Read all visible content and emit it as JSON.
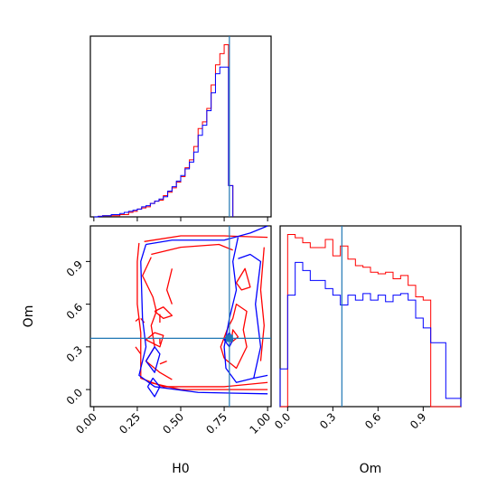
{
  "chart_data": {
    "type": "corner",
    "parameters": [
      "H0",
      "Om"
    ],
    "truths": {
      "H0": 0.78,
      "Om": 0.36
    },
    "truth_color": "#1f77b4",
    "series_colors": {
      "red": "#ff0000",
      "blue": "#0000ff"
    },
    "xlabels": {
      "H0": "H0",
      "Om": "Om"
    },
    "ylabel_2d": "Om",
    "h0_ticks": [
      "0.00",
      "0.25",
      "0.50",
      "0.75",
      "1.00"
    ],
    "om_ticks": [
      "0.0",
      "0.3",
      "0.6",
      "0.9"
    ],
    "hist_h0": {
      "range": [
        -0.02,
        1.02
      ],
      "bin_width": 0.025,
      "edges_start": 0.0,
      "red": [
        0,
        0.5,
        1,
        1,
        1,
        1,
        2,
        2,
        4,
        5,
        7,
        8,
        9,
        12,
        14,
        15,
        19,
        22,
        26,
        31,
        36,
        44,
        51,
        63,
        79,
        85,
        97,
        118,
        136,
        146,
        154,
        28
      ],
      "blue": [
        0,
        0.5,
        1,
        1,
        2,
        2,
        3,
        4,
        5,
        6,
        7,
        9,
        10,
        12,
        14,
        16,
        18,
        23,
        27,
        32,
        37,
        43,
        49,
        58,
        73,
        82,
        95,
        111,
        128,
        134,
        134,
        28
      ]
    },
    "hist_om": {
      "range": [
        -0.05,
        1.15
      ],
      "bin_width": 0.05,
      "edges_start": -0.05,
      "red": [
        0,
        10.5,
        10.3,
        10,
        9.7,
        9.7,
        10.2,
        9.2,
        9.8,
        9,
        8.6,
        8.5,
        8.2,
        8.1,
        8.2,
        7.8,
        8,
        7.4,
        6.7,
        6.5,
        0,
        0,
        0,
        0
      ],
      "blue": [
        2.3,
        6.8,
        8.8,
        8.3,
        7.7,
        7.7,
        7.2,
        6.8,
        6.2,
        6.8,
        6.5,
        6.9,
        6.5,
        6.8,
        6.4,
        6.8,
        6.9,
        6.5,
        5.4,
        4.8,
        3.9,
        3.9,
        0.5,
        0.5
      ]
    },
    "contours_2d": {
      "red": [
        [
          [
            0.26,
            1.03
          ],
          [
            0.25,
            0.9
          ],
          [
            0.25,
            0.6
          ],
          [
            0.27,
            0.4
          ],
          [
            0.27,
            0.08
          ],
          [
            0.4,
            0.02
          ],
          [
            0.75,
            0.02
          ],
          [
            1.0,
            0.05
          ]
        ],
        [
          [
            0.29,
            1.04
          ],
          [
            0.5,
            1.08
          ],
          [
            0.75,
            1.08
          ],
          [
            1.0,
            1.07
          ]
        ],
        [
          [
            0.32,
            0.05
          ],
          [
            0.5,
            0.0
          ],
          [
            0.75,
            0.0
          ],
          [
            1.0,
            0.0
          ]
        ],
        [
          [
            0.33,
            0.95
          ],
          [
            0.5,
            1.0
          ],
          [
            0.72,
            1.02
          ],
          [
            0.8,
            0.98
          ]
        ],
        [
          [
            0.33,
            0.93
          ],
          [
            0.28,
            0.8
          ],
          [
            0.34,
            0.65
          ],
          [
            0.36,
            0.55
          ],
          [
            0.33,
            0.45
          ],
          [
            0.35,
            0.3
          ],
          [
            0.3,
            0.2
          ],
          [
            0.38,
            0.12
          ],
          [
            0.45,
            0.07
          ]
        ],
        [
          [
            0.45,
            0.85
          ],
          [
            0.42,
            0.7
          ],
          [
            0.45,
            0.6
          ]
        ],
        [
          [
            0.35,
            0.55
          ],
          [
            0.4,
            0.58
          ],
          [
            0.45,
            0.52
          ],
          [
            0.4,
            0.5
          ],
          [
            0.35,
            0.55
          ]
        ],
        [
          [
            0.3,
            0.35
          ],
          [
            0.35,
            0.4
          ],
          [
            0.4,
            0.38
          ],
          [
            0.38,
            0.3
          ],
          [
            0.3,
            0.35
          ]
        ],
        [
          [
            0.75,
            0.22
          ],
          [
            0.73,
            0.3
          ],
          [
            0.77,
            0.43
          ],
          [
            0.8,
            0.5
          ],
          [
            0.82,
            0.6
          ],
          [
            0.88,
            0.55
          ],
          [
            0.86,
            0.42
          ],
          [
            0.88,
            0.3
          ],
          [
            0.82,
            0.15
          ],
          [
            0.75,
            0.22
          ]
        ],
        [
          [
            0.82,
            0.75
          ],
          [
            0.87,
            0.85
          ],
          [
            0.9,
            0.72
          ],
          [
            0.85,
            0.7
          ],
          [
            0.82,
            0.75
          ]
        ],
        [
          [
            0.38,
            0.47
          ],
          [
            0.38,
            0.53
          ]
        ],
        [
          [
            0.27,
            0.5
          ],
          [
            0.29,
            0.47
          ]
        ],
        [
          [
            0.38,
            0.18
          ],
          [
            0.42,
            0.2
          ]
        ],
        [
          [
            0.24,
            0.3
          ],
          [
            0.27,
            0.25
          ]
        ],
        [
          [
            0.79,
            0.33
          ],
          [
            0.8,
            0.42
          ],
          [
            0.83,
            0.37
          ],
          [
            0.79,
            0.33
          ]
        ],
        [
          [
            0.96,
            0.2
          ],
          [
            0.98,
            0.45
          ],
          [
            0.96,
            0.7
          ],
          [
            0.98,
            1.0
          ]
        ],
        [
          [
            0.38,
            0.32
          ],
          [
            0.38,
            0.36
          ]
        ],
        [
          [
            0.24,
            0.48
          ],
          [
            0.26,
            0.5
          ]
        ]
      ],
      "blue": [
        [
          [
            0.3,
            1.02
          ],
          [
            0.27,
            0.9
          ],
          [
            0.28,
            0.5
          ],
          [
            0.3,
            0.3
          ],
          [
            0.26,
            0.1
          ],
          [
            0.35,
            0.02
          ],
          [
            0.6,
            -0.02
          ],
          [
            1.0,
            -0.03
          ]
        ],
        [
          [
            0.3,
            1.02
          ],
          [
            0.45,
            1.05
          ],
          [
            0.75,
            1.05
          ],
          [
            0.9,
            1.1
          ],
          [
            1.0,
            1.15
          ]
        ],
        [
          [
            0.83,
            1.07
          ],
          [
            0.8,
            0.9
          ],
          [
            0.82,
            0.7
          ],
          [
            0.78,
            0.5
          ],
          [
            0.75,
            0.3
          ],
          [
            0.76,
            0.15
          ],
          [
            0.82,
            0.05
          ],
          [
            0.92,
            0.08
          ],
          [
            1.0,
            0.1
          ]
        ],
        [
          [
            0.83,
            0.92
          ],
          [
            0.9,
            0.95
          ],
          [
            0.96,
            0.9
          ],
          [
            0.93,
            0.6
          ],
          [
            0.96,
            0.3
          ],
          [
            0.92,
            0.08
          ]
        ],
        [
          [
            0.3,
            0.2
          ],
          [
            0.35,
            0.3
          ],
          [
            0.38,
            0.25
          ],
          [
            0.35,
            0.12
          ],
          [
            0.3,
            0.2
          ]
        ],
        [
          [
            0.31,
            0.02
          ],
          [
            0.35,
            -0.05
          ],
          [
            0.38,
            0.02
          ],
          [
            0.34,
            0.08
          ],
          [
            0.31,
            0.02
          ]
        ],
        [
          [
            0.75,
            0.35
          ],
          [
            0.78,
            0.4
          ],
          [
            0.8,
            0.35
          ],
          [
            0.78,
            0.3
          ],
          [
            0.75,
            0.35
          ]
        ]
      ]
    }
  }
}
